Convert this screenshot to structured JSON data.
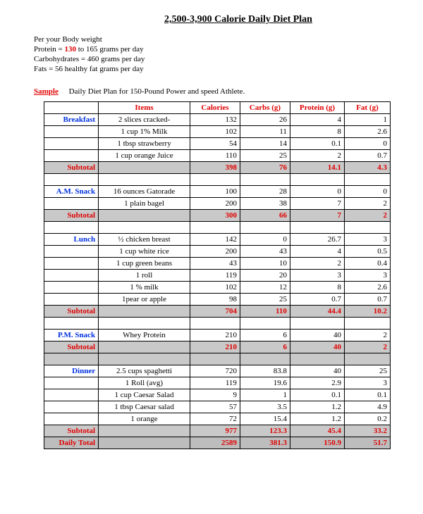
{
  "title": "2,500-3,900 Calorie Daily Diet Plan",
  "intro": {
    "bodyweight": "Per your Body weight",
    "protein_prefix": "Protein = ",
    "protein_red": "130",
    "protein_suffix": " to 165 grams per day",
    "carbs": "Carbohydrates = 460 grams per day",
    "fats": "Fats = 56 healthy fat grams per day"
  },
  "sample": {
    "label": "Sample",
    "desc": "Daily Diet Plan for 150-Pound Power and speed Athlete."
  },
  "headers": {
    "items": "Items",
    "cal": "Calories",
    "carb": "Carbs (g)",
    "prot": "Protein (g)",
    "fat": "Fat (g)"
  },
  "meals": {
    "breakfast": {
      "label": "Breakfast",
      "rows": [
        {
          "item": "2 slices cracked-",
          "cal": "132",
          "carb": "26",
          "prot": "4",
          "fat": "1"
        },
        {
          "item": "1 cup  1% Milk",
          "cal": "102",
          "carb": "11",
          "prot": "8",
          "fat": "2.6"
        },
        {
          "item": "1 tbsp strawberry",
          "cal": "54",
          "carb": "14",
          "prot": "0.1",
          "fat": "0"
        },
        {
          "item": "1 cup orange Juice",
          "cal": "110",
          "carb": "25",
          "prot": "2",
          "fat": "0.7"
        }
      ],
      "subtotal": {
        "cal": "398",
        "carb": "76",
        "prot": "14.1",
        "fat": "4.3"
      }
    },
    "amsnack": {
      "label": "A.M. Snack",
      "rows": [
        {
          "item": "16 ounces Gatorade",
          "cal": "100",
          "carb": "28",
          "prot": "0",
          "fat": "0"
        },
        {
          "item": "1 plain bagel",
          "cal": "200",
          "carb": "38",
          "prot": "7",
          "fat": "2"
        }
      ],
      "subtotal": {
        "cal": "300",
        "carb": "66",
        "prot": "7",
        "fat": "2"
      }
    },
    "lunch": {
      "label": "Lunch",
      "rows": [
        {
          "item": "½ chicken breast",
          "cal": "142",
          "carb": "0",
          "prot": "26.7",
          "fat": "3"
        },
        {
          "item": "1 cup white rice",
          "cal": "200",
          "carb": "43",
          "prot": "4",
          "fat": "0.5"
        },
        {
          "item": "1 cup green beans",
          "cal": "43",
          "carb": "10",
          "prot": "2",
          "fat": "0.4"
        },
        {
          "item": "1 roll",
          "cal": "119",
          "carb": "20",
          "prot": "3",
          "fat": "3"
        },
        {
          "item": "1 % milk",
          "cal": "102",
          "carb": "12",
          "prot": "8",
          "fat": "2.6"
        },
        {
          "item": "1pear or apple",
          "cal": "98",
          "carb": "25",
          "prot": "0.7",
          "fat": "0.7"
        }
      ],
      "subtotal": {
        "cal": "704",
        "carb": "110",
        "prot": "44.4",
        "fat": "10.2"
      }
    },
    "pmsnack": {
      "label": "P.M. Snack",
      "rows": [
        {
          "item": "Whey Protein",
          "cal": "210",
          "carb": "6",
          "prot": "40",
          "fat": "2"
        }
      ],
      "subtotal": {
        "cal": "210",
        "carb": "6",
        "prot": "40",
        "fat": "2"
      }
    },
    "dinner": {
      "label": "Dinner",
      "rows": [
        {
          "item": "2.5 cups spaghetti",
          "cal": "720",
          "carb": "83.8",
          "prot": "40",
          "fat": "25"
        },
        {
          "item": "1 Roll (avg)",
          "cal": "119",
          "carb": "19.6",
          "prot": "2.9",
          "fat": "3"
        },
        {
          "item": "1 cup Caesar Salad",
          "cal": "9",
          "carb": "1",
          "prot": "0.1",
          "fat": "0.1"
        },
        {
          "item": "1 tbsp Caesar salad",
          "cal": "57",
          "carb": "3.5",
          "prot": "1.2",
          "fat": "4.9"
        },
        {
          "item": "1 orange",
          "cal": "72",
          "carb": "15.4",
          "prot": "1.2",
          "fat": "0.2"
        }
      ],
      "subtotal": {
        "cal": "977",
        "carb": "123.3",
        "prot": "45.4",
        "fat": "33.2"
      }
    }
  },
  "total": {
    "label": "Daily Total",
    "cal": "2589",
    "carb": "381.3",
    "prot": "150.9",
    "fat": "51.7"
  },
  "subtotal_label": "Subtotal"
}
